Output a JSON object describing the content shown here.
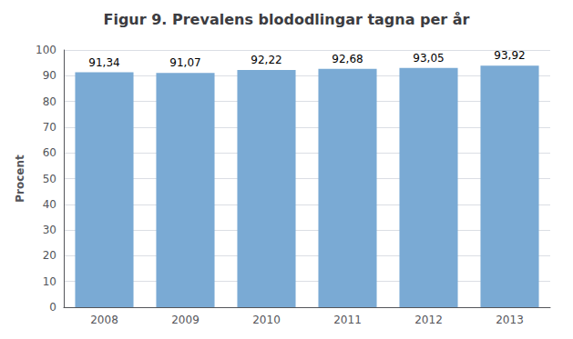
{
  "chart_data": {
    "type": "bar",
    "title": "Figur 9. Prevalens blododlingar tagna per år",
    "categories": [
      "2008",
      "2009",
      "2010",
      "2011",
      "2012",
      "2013"
    ],
    "values": [
      91.34,
      91.07,
      92.22,
      92.68,
      93.05,
      93.92
    ],
    "value_labels": [
      "91,34",
      "91,07",
      "92,22",
      "92,68",
      "93,05",
      "93,92"
    ],
    "data_labels": true,
    "color": "#7aaad4",
    "ylabel": "Procent",
    "ylim": [
      0,
      100
    ],
    "yticks": [
      0,
      10,
      20,
      30,
      40,
      50,
      60,
      70,
      80,
      90,
      100
    ],
    "grid": true
  }
}
